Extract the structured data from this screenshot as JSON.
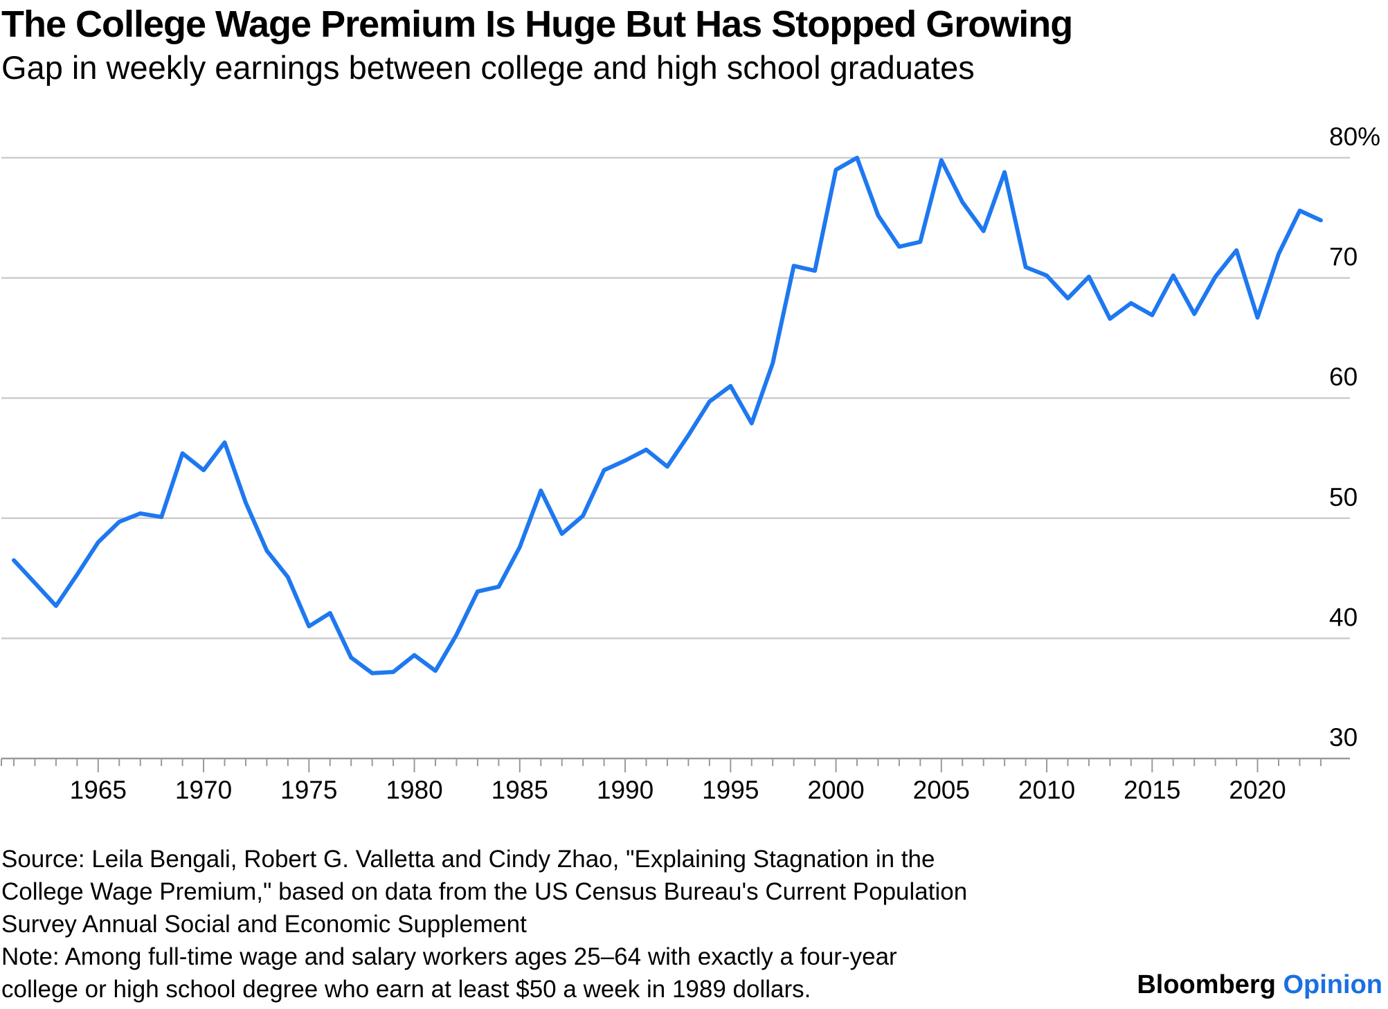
{
  "title": "The College Wage Premium Is Huge But Has Stopped Growing",
  "subtitle": "Gap in weekly earnings between college and high school graduates",
  "colors": {
    "line": "#1e78f0",
    "grid": "#cccccc",
    "axis": "#999999",
    "brand_accent": "#1b6fe0"
  },
  "source_lines": [
    "Source: Leila Bengali, Robert G. Valletta and Cindy Zhao, \"Explaining Stagnation in the",
    "College Wage Premium,\" based on data from the US Census Bureau's Current Population",
    "Survey Annual Social and Economic Supplement",
    "Note: Among full-time wage and salary workers ages 25–64 with exactly a four-year",
    "college or high school degree who earn at least $50 a week in 1989 dollars."
  ],
  "brand": {
    "name": "Bloomberg",
    "section": "Opinion"
  },
  "chart_data": {
    "type": "line",
    "title": "The College Wage Premium Is Huge But Has Stopped Growing",
    "subtitle": "Gap in weekly earnings between college and high school graduates",
    "xlabel": "",
    "ylabel": "",
    "xlim": [
      1960.5,
      2024
    ],
    "ylim": [
      30,
      80
    ],
    "y_ticks": [
      30,
      40,
      50,
      60,
      70,
      80
    ],
    "y_tick_labels": [
      "30",
      "40",
      "50",
      "60",
      "70",
      "80%"
    ],
    "x_ticks": [
      1965,
      1970,
      1975,
      1980,
      1985,
      1990,
      1995,
      2000,
      2005,
      2010,
      2015,
      2020
    ],
    "x_tick_labels": [
      "1965",
      "1970",
      "1975",
      "1980",
      "1985",
      "1990",
      "1995",
      "2000",
      "2005",
      "2010",
      "2015",
      "2020"
    ],
    "grid": true,
    "y_axis_side": "right",
    "legend": "none",
    "series": [
      {
        "name": "College wage premium",
        "x": [
          1961,
          1962,
          1963,
          1964,
          1965,
          1966,
          1967,
          1968,
          1969,
          1970,
          1971,
          1972,
          1973,
          1974,
          1975,
          1976,
          1977,
          1978,
          1979,
          1980,
          1981,
          1982,
          1983,
          1984,
          1985,
          1986,
          1987,
          1988,
          1989,
          1990,
          1991,
          1992,
          1993,
          1994,
          1995,
          1996,
          1997,
          1998,
          1999,
          2000,
          2001,
          2002,
          2003,
          2004,
          2005,
          2006,
          2007,
          2008,
          2009,
          2010,
          2011,
          2012,
          2013,
          2014,
          2015,
          2016,
          2017,
          2018,
          2019,
          2020,
          2021,
          2022,
          2023
        ],
        "values": [
          46.5,
          44.6,
          42.7,
          45.3,
          48.0,
          49.7,
          50.4,
          50.1,
          55.4,
          54.0,
          56.3,
          51.3,
          47.3,
          45.1,
          41.0,
          42.1,
          38.4,
          37.1,
          37.2,
          38.6,
          37.3,
          40.3,
          43.9,
          44.3,
          47.6,
          52.3,
          48.7,
          50.2,
          54.0,
          54.8,
          55.7,
          54.3,
          56.9,
          59.7,
          61.0,
          57.9,
          62.9,
          71.0,
          70.6,
          79.0,
          80.0,
          75.2,
          72.6,
          73.0,
          79.8,
          76.3,
          73.9,
          78.8,
          70.9,
          70.2,
          68.3,
          70.1,
          66.6,
          67.9,
          66.9,
          70.2,
          67.0,
          70.1,
          72.3,
          66.7,
          72.0,
          75.6,
          74.8
        ]
      }
    ]
  }
}
